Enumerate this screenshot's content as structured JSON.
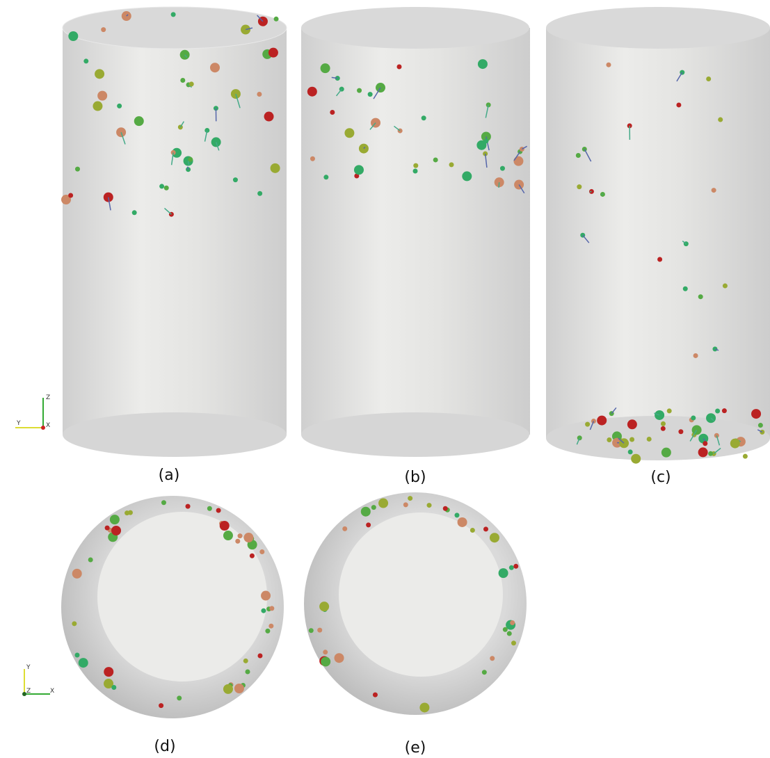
{
  "panels": [
    {
      "label": "(a)"
    },
    {
      "label": "(b)"
    },
    {
      "label": "(c)"
    },
    {
      "label": "(d)"
    },
    {
      "label": "(e)"
    }
  ],
  "axes_side": {
    "z": "Z",
    "y": "Y",
    "x": "X"
  },
  "axes_top": {
    "y": "Y",
    "z": "Z",
    "x": "X"
  }
}
